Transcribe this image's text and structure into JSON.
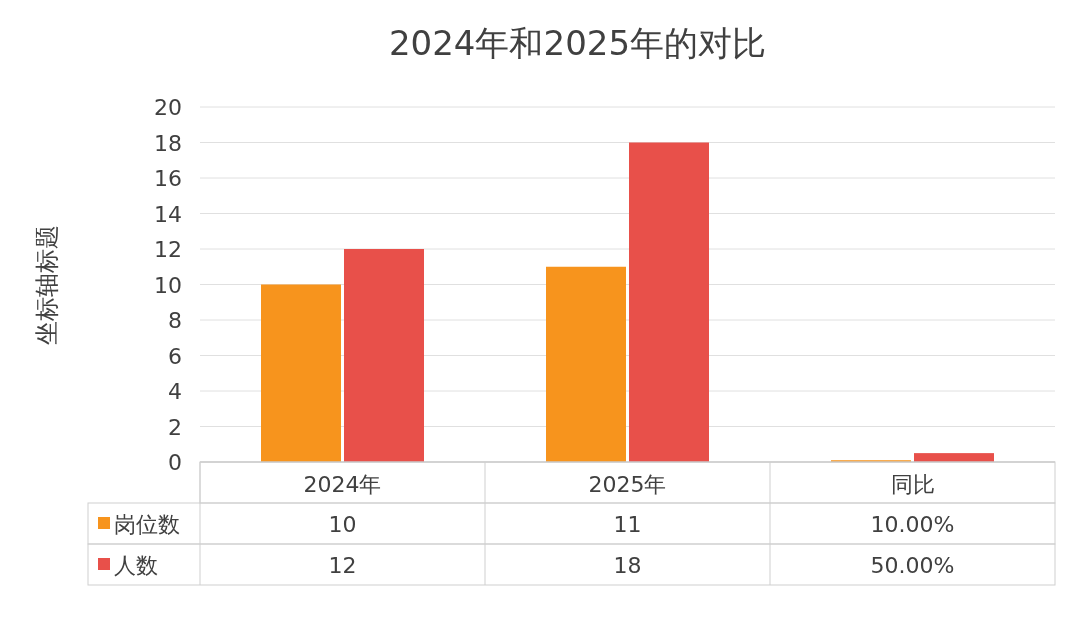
{
  "chart_data": {
    "type": "bar",
    "title": "2024年和2025年的对比",
    "ylabel": "坐标轴标题",
    "categories": [
      "2024年",
      "2025年",
      "同比"
    ],
    "series": [
      {
        "name": "岗位数",
        "color": "#f7941d",
        "values": [
          10,
          11,
          0.1
        ],
        "value_labels": [
          "10",
          "11",
          "10.00%"
        ]
      },
      {
        "name": "人数",
        "color": "#e8504a",
        "values": [
          12,
          18,
          0.5
        ],
        "value_labels": [
          "12",
          "18",
          "50.00%"
        ]
      }
    ],
    "ylim": [
      0,
      20
    ],
    "yticks": [
      0,
      2,
      4,
      6,
      8,
      10,
      12,
      14,
      16,
      18,
      20
    ],
    "grid": "y",
    "legend": "bottom"
  }
}
